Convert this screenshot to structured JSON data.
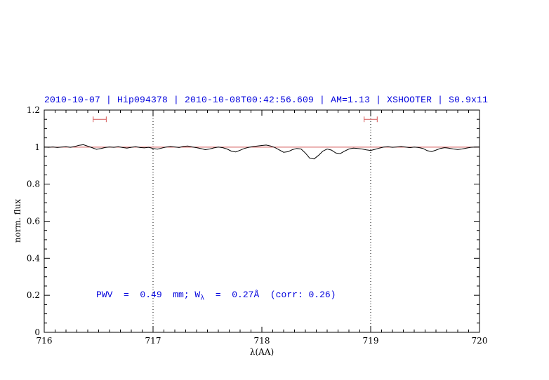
{
  "chart_data": {
    "type": "line",
    "title": "2010-10-07 | Hip094378 | 2010-10-08T00:42:56.609 | AM=1.13 | XSHOOTER | S0.9x11",
    "xlabel": "λ(AA)",
    "ylabel": "norm. flux",
    "xlim": [
      716,
      720
    ],
    "ylim": [
      0,
      1.2
    ],
    "xticks": [
      716,
      717,
      718,
      719,
      720
    ],
    "xtick_labels": [
      "716",
      "717",
      "718",
      "719",
      "720"
    ],
    "yticks": [
      0,
      0.2,
      0.4,
      0.6,
      0.8,
      1,
      1.2
    ],
    "ytick_labels": [
      "0",
      "0.2",
      "0.4",
      "0.6",
      "0.8",
      "1",
      "1.2"
    ],
    "x_minor_step": 0.1,
    "y_minor_step": 0.05,
    "grid": "off",
    "vlines": [
      717,
      719
    ],
    "continuum_y": 1.0,
    "markers": [
      {
        "x1": 716.45,
        "x2": 716.57,
        "y": 1.15
      },
      {
        "x1": 718.94,
        "x2": 719.06,
        "y": 1.15
      }
    ],
    "annotation": {
      "pre": "PWV  =  0.49  mm; W",
      "sub": "λ",
      "post": "  =  0.27Å  (corr: 0.26)"
    },
    "colors": {
      "title": "#0000dd",
      "annotation": "#0000dd",
      "spectrum": "#000000",
      "continuum": "#d45555",
      "marker": "#d45555",
      "vline": "#000000",
      "axis": "#000000"
    },
    "series": [
      {
        "name": "normalized spectrum",
        "color": "#000000",
        "x": [
          716,
          716.04,
          716.08,
          716.12,
          716.16,
          716.2,
          716.24,
          716.28,
          716.32,
          716.36,
          716.4,
          716.44,
          716.48,
          716.52,
          716.56,
          716.6,
          716.64,
          716.68,
          716.72,
          716.76,
          716.8,
          716.84,
          716.88,
          716.92,
          716.96,
          717,
          717.04,
          717.08,
          717.12,
          717.16,
          717.2,
          717.24,
          717.28,
          717.32,
          717.36,
          717.4,
          717.44,
          717.48,
          717.52,
          717.56,
          717.6,
          717.64,
          717.68,
          717.72,
          717.76,
          717.8,
          717.84,
          717.88,
          717.92,
          717.96,
          718,
          718.04,
          718.08,
          718.12,
          718.16,
          718.2,
          718.24,
          718.28,
          718.32,
          718.36,
          718.4,
          718.44,
          718.48,
          718.52,
          718.56,
          718.6,
          718.64,
          718.68,
          718.72,
          718.76,
          718.8,
          718.84,
          718.88,
          718.92,
          718.96,
          719,
          719.04,
          719.08,
          719.12,
          719.16,
          719.2,
          719.24,
          719.28,
          719.32,
          719.36,
          719.4,
          719.44,
          719.48,
          719.52,
          719.56,
          719.6,
          719.64,
          719.68,
          719.72,
          719.76,
          719.8,
          719.84,
          719.88,
          719.92,
          719.96,
          720
        ],
        "y": [
          1.0,
          0.999,
          1.001,
          0.998,
          1.0,
          1.002,
          0.999,
          1.003,
          1.01,
          1.013,
          1.005,
          0.997,
          0.988,
          0.992,
          0.998,
          1.001,
          0.999,
          1.002,
          0.998,
          0.995,
          0.999,
          1.002,
          0.998,
          0.996,
          0.999,
          0.993,
          0.989,
          0.995,
          1.0,
          1.003,
          1.001,
          0.998,
          1.004,
          1.006,
          1.001,
          0.997,
          0.992,
          0.986,
          0.99,
          0.996,
          1.0,
          0.997,
          0.99,
          0.978,
          0.974,
          0.983,
          0.993,
          0.999,
          1.003,
          1.006,
          1.009,
          1.011,
          1.006,
          0.998,
          0.985,
          0.972,
          0.975,
          0.986,
          0.993,
          0.99,
          0.968,
          0.94,
          0.936,
          0.955,
          0.978,
          0.99,
          0.984,
          0.968,
          0.965,
          0.978,
          0.99,
          0.995,
          0.993,
          0.99,
          0.985,
          0.982,
          0.988,
          0.995,
          1.0,
          1.002,
          0.999,
          1.001,
          1.003,
          1.0,
          0.997,
          1.0,
          0.998,
          0.993,
          0.981,
          0.976,
          0.984,
          0.993,
          0.997,
          0.994,
          0.99,
          0.987,
          0.99,
          0.995,
          0.999,
          1.0,
          1.001
        ]
      }
    ]
  }
}
